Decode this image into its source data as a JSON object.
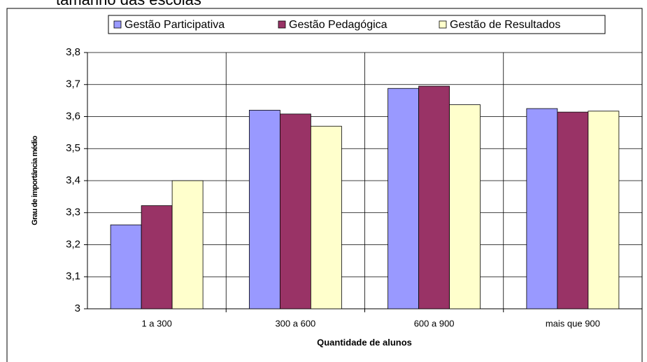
{
  "chart_data": {
    "type": "bar",
    "title": "tamanho das escolas",
    "x_label": "Quantidade de alunos",
    "y_label": "Grau de importância médio",
    "categories": [
      "1 a 300",
      "300 a 600",
      "600 a 900",
      "mais que 900"
    ],
    "series": [
      {
        "name": "Gestão Participativa",
        "color": "#9999ff",
        "values": [
          3.262,
          3.62,
          3.688,
          3.625
        ]
      },
      {
        "name": "Gestão Pedagógica",
        "color": "#993366",
        "values": [
          3.322,
          3.608,
          3.695,
          3.614
        ]
      },
      {
        "name": "Gestão de Resultados",
        "color": "#ffffcc",
        "values": [
          3.4,
          3.57,
          3.637,
          3.617
        ]
      }
    ],
    "ylim": [
      3,
      3.8
    ],
    "yticks": [
      3,
      {
        "value": 3.1,
        "label": "3,1"
      },
      {
        "value": 3.2,
        "label": "3,2"
      },
      {
        "value": 3.3,
        "label": "3,3"
      },
      {
        "value": 3.4,
        "label": "3,4"
      },
      {
        "value": 3.5,
        "label": "3,5"
      },
      {
        "value": 3.6,
        "label": "3,6"
      },
      {
        "value": 3.7,
        "label": "3,7"
      },
      {
        "value": 3.8,
        "label": "3,8"
      }
    ],
    "grid": true,
    "legend": "top"
  }
}
